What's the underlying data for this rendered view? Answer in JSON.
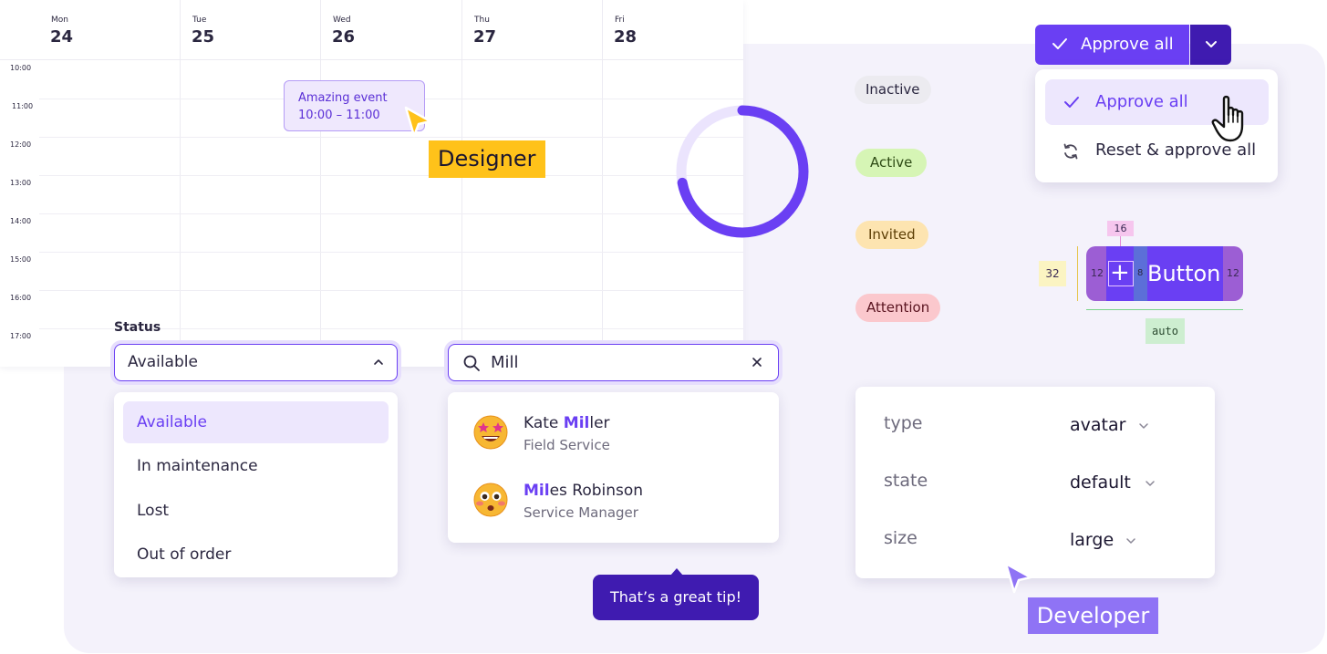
{
  "calendar": {
    "days": [
      {
        "name": "Mon",
        "num": "24"
      },
      {
        "name": "Tue",
        "num": "25"
      },
      {
        "name": "Wed",
        "num": "26"
      },
      {
        "name": "Thu",
        "num": "27"
      },
      {
        "name": "Fri",
        "num": "28"
      }
    ],
    "times": [
      "10:00",
      "11:00",
      "12:00",
      "13:00",
      "14:00",
      "15:00",
      "16:00",
      "17:00"
    ],
    "event": {
      "title": "Amazing event",
      "time": "10:00 – 11:00"
    }
  },
  "labels": {
    "designer": "Designer",
    "developer": "Developer"
  },
  "progress": {
    "value": 0.72
  },
  "badges": [
    {
      "label": "Inactive",
      "color": "#ecebf0",
      "text_color": "#2b2740"
    },
    {
      "label": "Active",
      "color": "#d6f5b5",
      "text_color": "#2d4a14"
    },
    {
      "label": "Invited",
      "color": "#fde4b0",
      "text_color": "#5c3e05"
    },
    {
      "label": "Attention",
      "color": "#fbc8cd",
      "text_color": "#5a1420"
    }
  ],
  "approve": {
    "button_label": "Approve all",
    "menu": [
      {
        "label": "Approve all",
        "icon": "check-icon"
      },
      {
        "label": "Reset & approve all",
        "icon": "refresh-icon"
      }
    ]
  },
  "button_anatomy": {
    "label": "Button",
    "padding_left": "12",
    "gap": "8",
    "padding_right": "12",
    "icon_size": "16",
    "height": "32",
    "width": "auto"
  },
  "status": {
    "label": "Status",
    "value": "Available",
    "options": [
      "Available",
      "In maintenance",
      "Lost",
      "Out of order"
    ]
  },
  "search": {
    "value": "Mill",
    "results": [
      {
        "highlight": "Mil",
        "rest_before": "Kate ",
        "rest_after": "ler",
        "role": "Field Service",
        "icon": "star-struck-emoji-icon"
      },
      {
        "highlight": "Mil",
        "rest_before": "",
        "rest_after": "es Robinson",
        "role": "Service Manager",
        "icon": "flushed-emoji-icon"
      }
    ]
  },
  "tooltip": {
    "text": "That’s a great tip!"
  },
  "props": [
    {
      "key": "type",
      "value": "avatar"
    },
    {
      "key": "state",
      "value": "default"
    },
    {
      "key": "size",
      "value": "large"
    }
  ],
  "colors": {
    "accent": "#6a3ff3",
    "accent_dark": "#3f1bb0",
    "designer": "#ffc21a",
    "developer": "#8f73f5"
  }
}
